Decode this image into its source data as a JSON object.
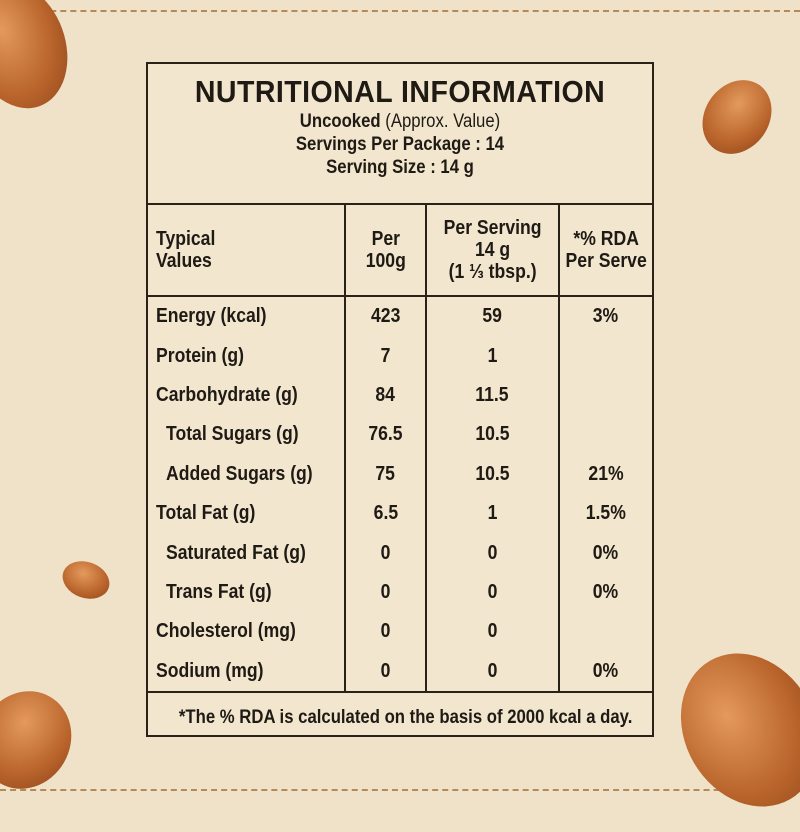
{
  "header": {
    "title": "NUTRITIONAL INFORMATION",
    "uncooked": "Uncooked",
    "approx": "(Approx. Value)",
    "servings_per_package": "Servings Per Package : 14",
    "serving_size": "Serving Size : 14 g"
  },
  "columns": [
    {
      "line1": "Typical",
      "line2": "Values",
      "line3": ""
    },
    {
      "line1": "Per",
      "line2": "100g",
      "line3": ""
    },
    {
      "line1": "Per Serving",
      "line2": "14 g",
      "line3": "(1 ⅓ tbsp.)"
    },
    {
      "line1": "*% RDA",
      "line2": "Per Serve",
      "line3": ""
    }
  ],
  "rows": [
    {
      "name": "Energy (kcal)",
      "per100": "423",
      "perServing": "59",
      "rda": "3%"
    },
    {
      "name": "Protein (g)",
      "per100": "7",
      "perServing": "1",
      "rda": ""
    },
    {
      "name": "Carbohydrate (g)",
      "per100": "84",
      "perServing": "11.5",
      "rda": ""
    },
    {
      "name": "Total Sugars (g)",
      "per100": "76.5",
      "perServing": "10.5",
      "rda": ""
    },
    {
      "name": "Added Sugars (g)",
      "per100": "75",
      "perServing": "10.5",
      "rda": "21%"
    },
    {
      "name": "Total Fat (g)",
      "per100": "6.5",
      "perServing": "1",
      "rda": "1.5%"
    },
    {
      "name": "Saturated Fat (g)",
      "per100": "0",
      "perServing": "0",
      "rda": "0%"
    },
    {
      "name": "Trans Fat (g)",
      "per100": "0",
      "perServing": "0",
      "rda": "0%"
    },
    {
      "name": "Cholesterol (mg)",
      "per100": "0",
      "perServing": "0",
      "rda": ""
    },
    {
      "name": "Sodium (mg)",
      "per100": "0",
      "perServing": "0",
      "rda": "0%"
    }
  ],
  "footnote": "*The % RDA is calculated on the basis of 2000 kcal a day.",
  "colors": {
    "background": "#efe2c8",
    "ink": "#1f1a14",
    "almond": "#b7622a"
  }
}
